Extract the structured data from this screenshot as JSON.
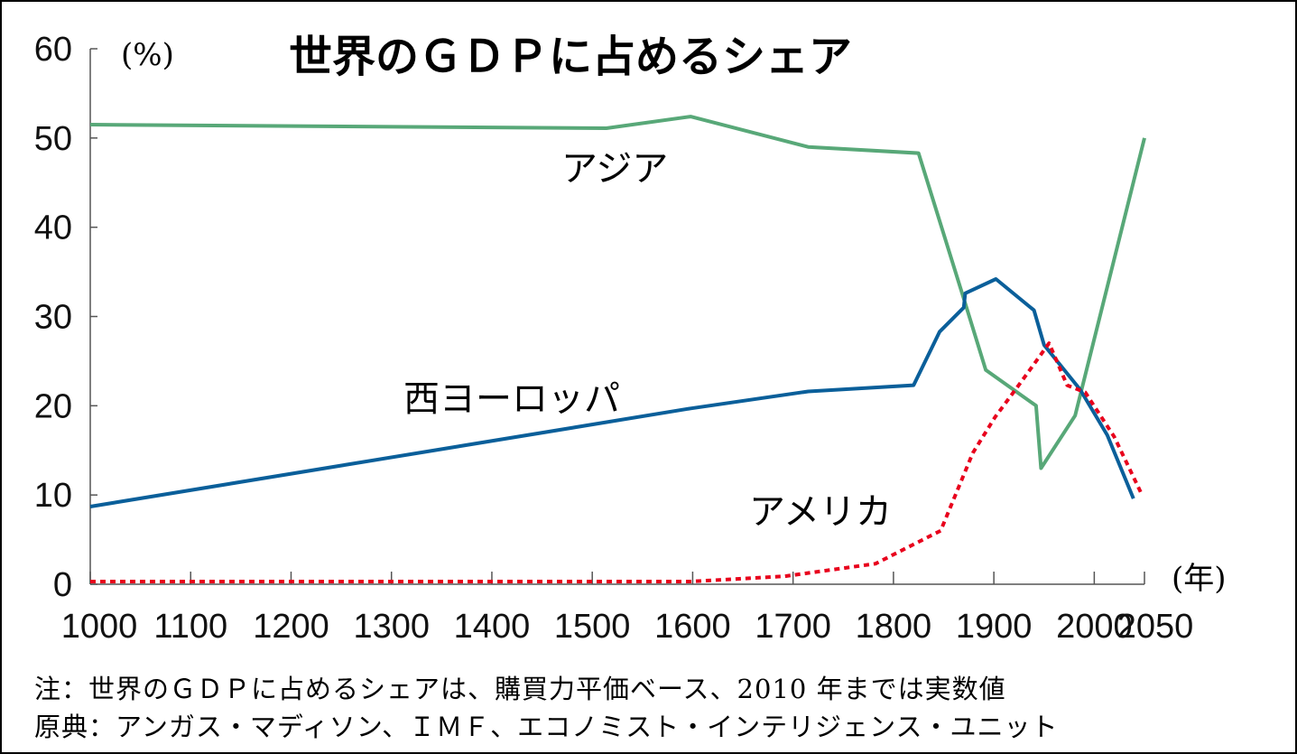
{
  "chart_data": {
    "type": "line",
    "title": "世界のＧＤＰに占めるシェア",
    "ylabel": "(%)",
    "xlabel": "(年)",
    "xlim": [
      1000,
      2050
    ],
    "ylim": [
      0,
      60
    ],
    "xticks": [
      1000,
      1100,
      1200,
      1300,
      1400,
      1500,
      1600,
      1700,
      1800,
      1900,
      2000,
      2050
    ],
    "yticks": [
      0,
      10,
      20,
      30,
      40,
      50,
      60
    ],
    "grid": false,
    "series": [
      {
        "name": "アジア",
        "color": "#58a878",
        "style": "solid",
        "x": [
          1000,
          1514,
          1598,
          1715,
          1825,
          1870,
          1892,
          1942,
          1947,
          1981,
          2050
        ],
        "y": [
          51.5,
          51.1,
          52.4,
          49.0,
          48.3,
          32.0,
          24.0,
          20.0,
          13.0,
          18.9,
          50.0
        ]
      },
      {
        "name": "西ヨーロッパ",
        "color": "#0a5f9a",
        "style": "solid",
        "x": [
          1000,
          1598,
          1715,
          1820,
          1846,
          1870,
          1871.5,
          1902,
          1940,
          1950,
          1986,
          2013,
          2039
        ],
        "y": [
          8.7,
          19.7,
          21.6,
          22.3,
          28.3,
          31.0,
          32.6,
          34.2,
          30.7,
          26.8,
          21.8,
          16.7,
          9.6
        ]
      },
      {
        "name": "アメリカ",
        "color": "#e8001c",
        "style": "dotted",
        "x": [
          1000,
          1598,
          1692,
          1782,
          1847,
          1879,
          1901,
          1928,
          1955,
          1973,
          1991,
          2020,
          2048
        ],
        "y": [
          0.3,
          0.3,
          0.9,
          2.3,
          6.0,
          14.7,
          18.7,
          22.8,
          27.0,
          22.3,
          21.5,
          16.5,
          9.9
        ]
      }
    ],
    "annotations": [
      "アジア",
      "西ヨーロッパ",
      "アメリカ"
    ]
  },
  "notes": {
    "note": "注：世界のＧＤＰに占めるシェアは、購買力平価ベース、2010 年までは実数値",
    "source": "原典：アンガス・マディソン、ＩＭＦ、エコノミスト・インテリジェンス・ユニット"
  }
}
